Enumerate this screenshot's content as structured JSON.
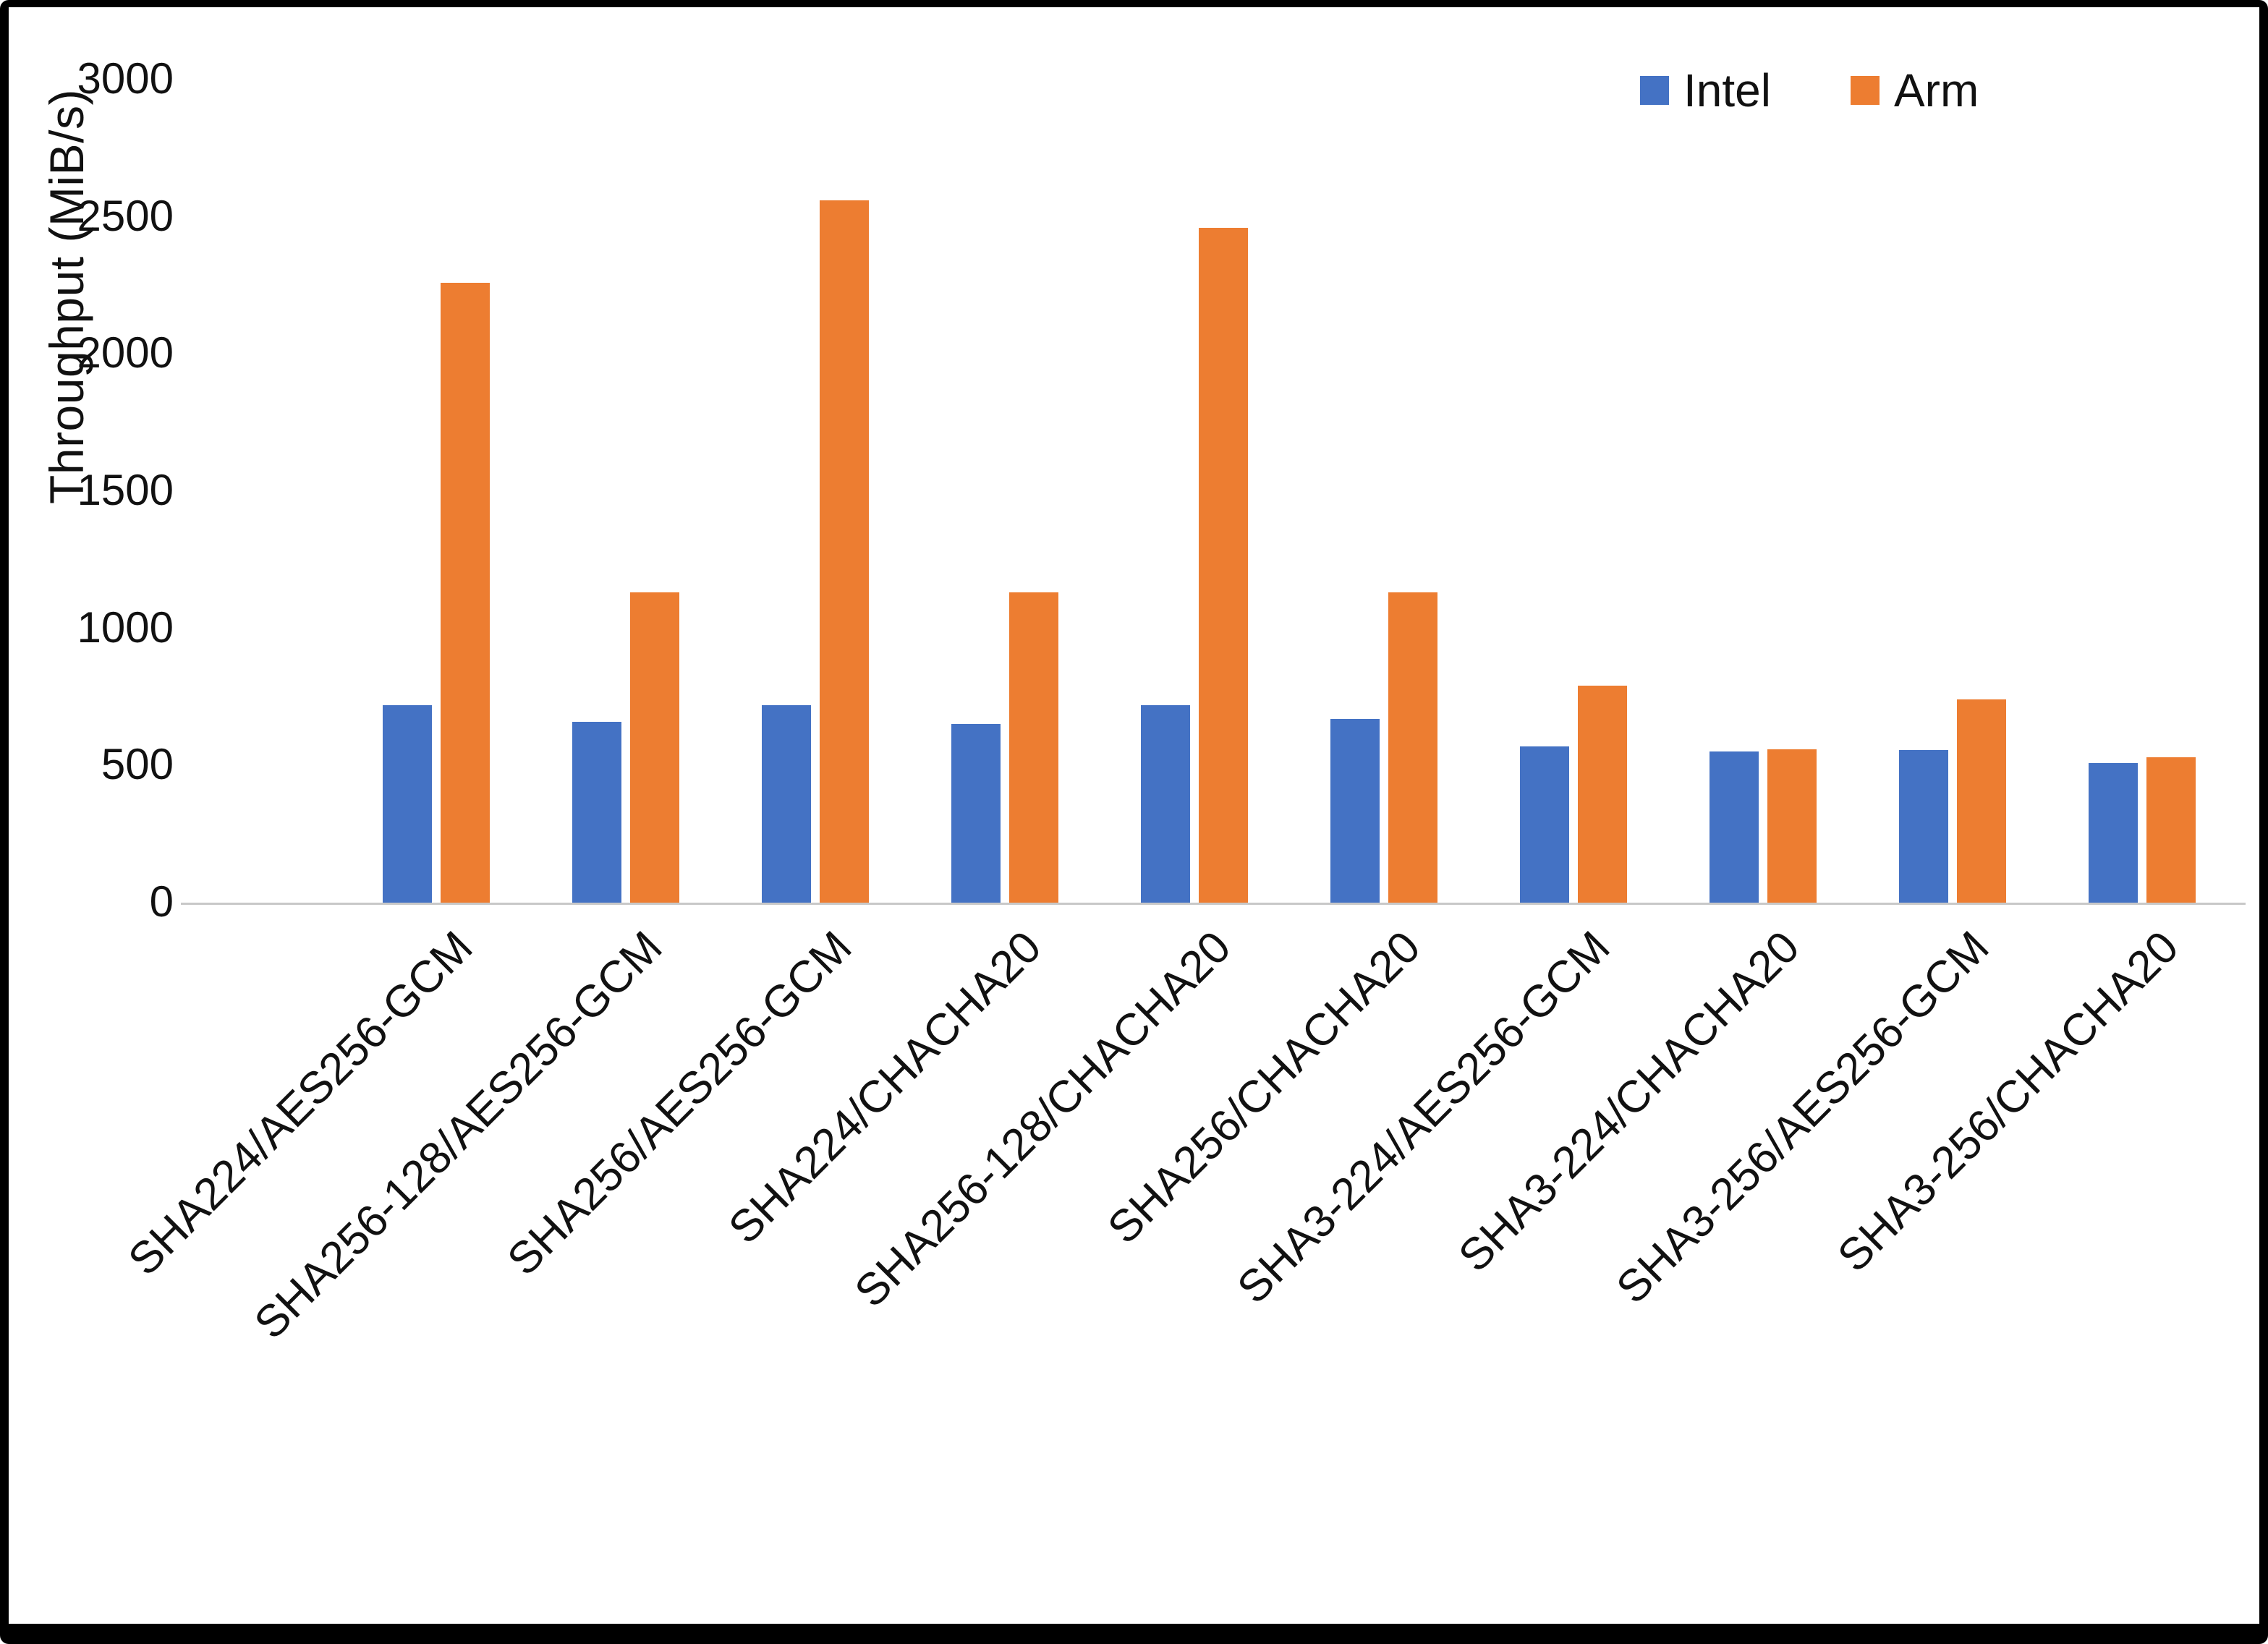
{
  "chart_data": {
    "type": "bar",
    "title": "",
    "xlabel": "",
    "ylabel": "Throughput (MiB/s)",
    "ylim": [
      0,
      3000
    ],
    "yticks": [
      0,
      500,
      1000,
      1500,
      2000,
      2500,
      3000
    ],
    "grid": false,
    "legend_position": "top-right",
    "categories": [
      "SHA224/AES256-GCM",
      "SHA256-128/AES256-GCM",
      "SHA256/AES256-GCM",
      "SHA224/CHACHA20",
      "SHA256-128/CHACHA20",
      "SHA256/CHACHA20",
      "SHA3-224/AES256-GCM",
      "SHA3-224/CHACHA20",
      "SHA3-256/AES256-GCM",
      "SHA3-256/CHACHA20"
    ],
    "series": [
      {
        "name": "Intel",
        "color": "#4472C4",
        "values": [
          720,
          660,
          720,
          650,
          720,
          670,
          570,
          550,
          555,
          510
        ]
      },
      {
        "name": "Arm",
        "color": "#ED7D31",
        "values": [
          2260,
          1130,
          2560,
          1130,
          2460,
          1130,
          790,
          560,
          740,
          530
        ]
      }
    ]
  }
}
